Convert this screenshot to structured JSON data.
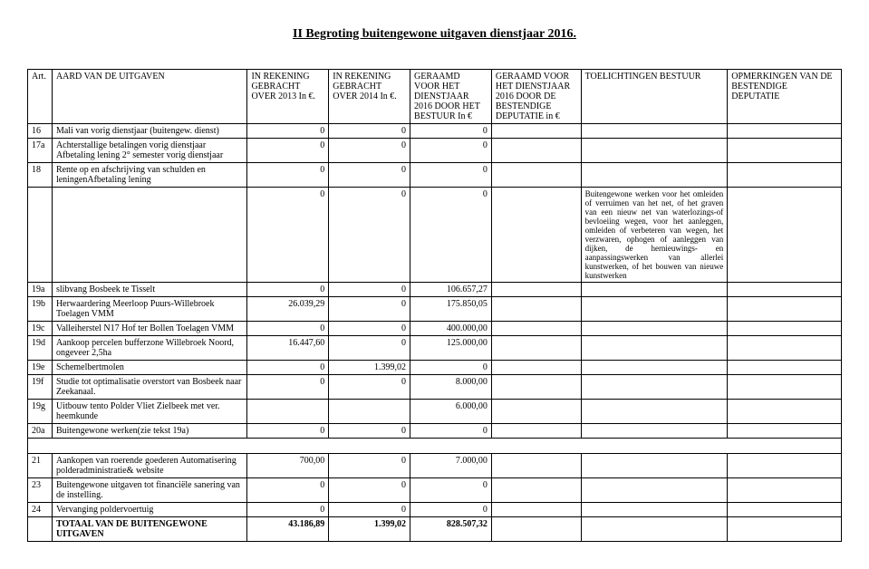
{
  "title": "II Begroting buitengewone uitgaven dienstjaar 2016.",
  "headers": {
    "art": "Art.",
    "desc": "AARD VAN DE UITGAVEN",
    "c1": "IN REKENING GEBRACHT OVER 2013\nIn €.",
    "c2": "IN REKENING GEBRACHT OVER 2014\nIn €.",
    "c3": "GERAAMD VOOR HET DIENSTJAAR 2016 DOOR HET BESTUUR\nIn €",
    "c4": "GERAAMD VOOR HET DIENSTJAAR 2016 DOOR DE BESTENDIGE DEPUTATIE in €",
    "c5": "TOELICHTINGEN BESTUUR",
    "c6": "OPMERKINGEN VAN DE BESTENDIGE DEPUTATIE"
  },
  "rows": [
    {
      "art": "16",
      "desc": "Mali van vorig dienstjaar (buitengew. dienst)",
      "v1": "0",
      "v2": "0",
      "v3": "0",
      "v4": "",
      "toe": "",
      "opm": ""
    },
    {
      "art": "17a",
      "desc": "Achterstallige betalingen vorig dienstjaar Afbetaling lening 2° semester vorig dienstjaar",
      "v1": "0",
      "v2": "0",
      "v3": "0",
      "v4": "",
      "toe": "",
      "opm": ""
    },
    {
      "art": "18",
      "desc": "Rente op en afschrijving van schulden en leningenAfbetaling lening",
      "v1": "0",
      "v2": "0",
      "v3": "0",
      "v4": "",
      "toe": "",
      "opm": ""
    },
    {
      "art": "",
      "desc": "",
      "v1": "0",
      "v2": "0",
      "v3": "0",
      "v4": "",
      "toe": "Buitengewone werken voor het omleiden of verruimen van het net, of het graven van een nieuw net van waterlozings-of bevloeiing wegen, voor het aanleggen, omleiden of verbeteren van wegen, het verzwaren, ophogen of aanleggen van dijken, de hernieuwings- en aanpassingswerken van allerlei kunstwerken, of het bouwen van nieuwe kunstwerken",
      "opm": ""
    },
    {
      "art": "19a",
      "desc": "slibvang Bosbeek te Tisselt",
      "v1": "0",
      "v2": "0",
      "v3": "106.657,27",
      "v4": "",
      "toe": "",
      "opm": ""
    },
    {
      "art": "19b",
      "desc": "Herwaardering Meerloop Puurs-Willebroek Toelagen VMM",
      "v1": "26.039,29",
      "v2": "0",
      "v3": "175.850,05",
      "v4": "",
      "toe": "",
      "opm": ""
    },
    {
      "art": "19c",
      "desc": "Valleiherstel N17 Hof ter Bollen Toelagen VMM",
      "v1": "0",
      "v2": "0",
      "v3": "400.000,00",
      "v4": "",
      "toe": "",
      "opm": ""
    },
    {
      "art": "19d",
      "desc": "Aankoop percelen bufferzone Willebroek Noord, ongeveer 2,5ha",
      "v1": "16.447,60",
      "v2": "0",
      "v3": "125.000,00",
      "v4": "",
      "toe": "",
      "opm": ""
    },
    {
      "art": "19e",
      "desc": "Schemelbertmolen",
      "v1": "0",
      "v2": "1.399,02",
      "v3": "0",
      "v4": "",
      "toe": "",
      "opm": ""
    },
    {
      "art": "19f",
      "desc": "Studie tot optimalisatie overstort van Bosbeek naar Zeekanaal.",
      "v1": "0",
      "v2": "0",
      "v3": "8.000,00",
      "v4": "",
      "toe": "",
      "opm": ""
    },
    {
      "art": "19g",
      "desc": "Uitbouw tento Polder Vliet Zielbeek met ver. heemkunde",
      "v1": "",
      "v2": "",
      "v3": "6.000,00",
      "v4": "",
      "toe": "",
      "opm": ""
    },
    {
      "art": "20a",
      "desc": "Buitengewone werken(zie tekst 19a)",
      "v1": "0",
      "v2": "0",
      "v3": "0",
      "v4": "",
      "toe": "",
      "opm": ""
    },
    {
      "art": "_SPACER_",
      "desc": "",
      "v1": "",
      "v2": "",
      "v3": "",
      "v4": "",
      "toe": "",
      "opm": ""
    },
    {
      "art": "21",
      "desc": "Aankopen van roerende goederen Automatisering polderadministratie& website",
      "v1": "700,00",
      "v2": "0",
      "v3": "7.000,00",
      "v4": "",
      "toe": "",
      "opm": ""
    },
    {
      "art": "23",
      "desc": "Buitengewone uitgaven tot financiële sanering van de instelling.",
      "v1": "0",
      "v2": "0",
      "v3": "0",
      "v4": "",
      "toe": "",
      "opm": ""
    },
    {
      "art": "24",
      "desc": "Vervanging poldervoertuig",
      "v1": "0",
      "v2": "0",
      "v3": "0",
      "v4": "",
      "toe": "",
      "opm": ""
    },
    {
      "art": "",
      "desc": "TOTAAL VAN DE BUITENGEWONE UITGAVEN",
      "v1": "43.186,89",
      "v2": "1.399,02",
      "v3": "828.507,32",
      "v4": "",
      "toe": "",
      "opm": "",
      "bold": true
    }
  ]
}
